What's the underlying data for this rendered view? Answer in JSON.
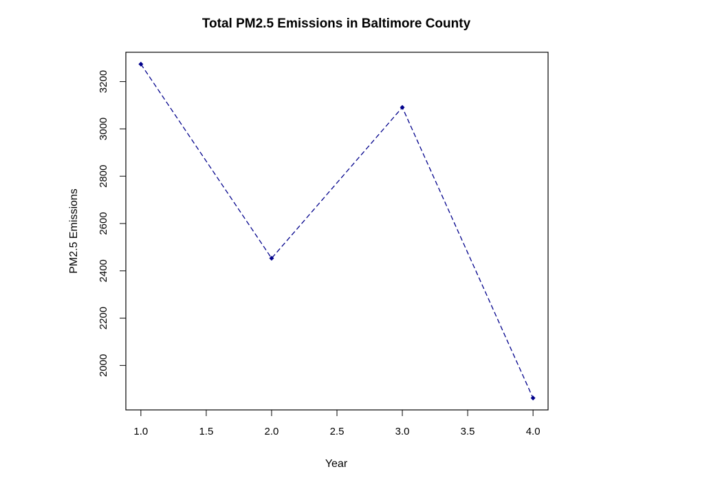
{
  "chart_data": {
    "type": "line",
    "title": "Total PM2.5 Emissions in Baltimore County",
    "xlabel": "Year",
    "ylabel": "PM2.5 Emissions",
    "x": [
      1,
      2,
      3,
      4
    ],
    "y": [
      3274,
      2453,
      3091,
      1862
    ],
    "xlim": [
      0.885,
      4.115
    ],
    "ylim": [
      1812,
      3324
    ],
    "xticks": [
      1.0,
      1.5,
      2.0,
      2.5,
      3.0,
      3.5,
      4.0
    ],
    "xtick_labels": [
      "1.0",
      "1.5",
      "2.0",
      "2.5",
      "3.0",
      "3.5",
      "4.0"
    ],
    "yticks": [
      2000,
      2200,
      2400,
      2600,
      2800,
      3000,
      3200
    ],
    "ytick_labels": [
      "2000",
      "2200",
      "2400",
      "2600",
      "2800",
      "3000",
      "3200"
    ],
    "line_style": "dashed",
    "marker": "diamond",
    "grid": false,
    "legend": "none"
  },
  "colors": {
    "series": "#00008B",
    "axes": "#000000",
    "background": "#FFFFFF"
  }
}
